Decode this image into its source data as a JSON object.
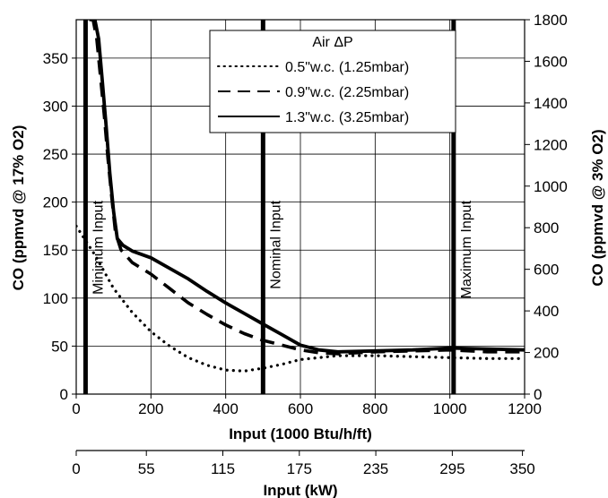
{
  "chart_data": {
    "type": "line",
    "xlabel": "Input (1000 Btu/h/ft)",
    "ylabel": "CO (ppmvd @ 17% O2)",
    "y2label": "CO (ppmvd @ 3% O2)",
    "x2label": "Input (kW)",
    "xlim": [
      0,
      1200
    ],
    "ylim": [
      0,
      390
    ],
    "y2lim": [
      0,
      1800
    ],
    "xticks": [
      0,
      200,
      400,
      600,
      800,
      1000,
      1200
    ],
    "yticks": [
      0,
      50,
      100,
      150,
      200,
      250,
      300,
      350
    ],
    "y2ticks": [
      0,
      200,
      400,
      600,
      800,
      1000,
      1200,
      1400,
      1600,
      1800
    ],
    "x2ticks": [
      {
        "label": "0",
        "btu": 0
      },
      {
        "label": "55",
        "btu": 187.7
      },
      {
        "label": "115",
        "btu": 392.4
      },
      {
        "label": "175",
        "btu": 597.1
      },
      {
        "label": "235",
        "btu": 801.8
      },
      {
        "label": "295",
        "btu": 1006.5
      },
      {
        "label": "350",
        "btu": 1194.2
      }
    ],
    "grid": true,
    "legend": {
      "title": "Air ΔP",
      "placement": "top-center",
      "entries": [
        "0.5\"w.c. (1.25mbar)",
        "0.9\"w.c. (2.25mbar)",
        "1.3\"w.c. (3.25mbar)"
      ]
    },
    "reference_lines": [
      {
        "x": 25,
        "label": "Minimum Input"
      },
      {
        "x": 500,
        "label": "Nominal Input"
      },
      {
        "x": 1010,
        "label": "Maximum Input"
      }
    ],
    "series": [
      {
        "name": "0.5\"w.c. (1.25mbar)",
        "style": "dotted",
        "x": [
          0,
          50,
          100,
          150,
          200,
          250,
          300,
          350,
          400,
          450,
          500,
          550,
          600,
          650,
          700,
          800,
          900,
          1000,
          1100,
          1200
        ],
        "y": [
          175,
          145,
          110,
          85,
          65,
          50,
          38,
          30,
          25,
          24,
          27,
          31,
          36,
          38,
          40,
          40,
          39,
          38,
          37,
          37
        ]
      },
      {
        "name": "0.9\"w.c. (2.25mbar)",
        "style": "dashed",
        "x": [
          35,
          45,
          55,
          65,
          75,
          85,
          95,
          105,
          120,
          150,
          200,
          250,
          300,
          350,
          400,
          450,
          500,
          550,
          600,
          650,
          700,
          800,
          900,
          1000,
          1100,
          1200
        ],
        "y": [
          390,
          390,
          370,
          330,
          290,
          245,
          205,
          168,
          150,
          137,
          125,
          110,
          95,
          83,
          72,
          63,
          56,
          51,
          46,
          43,
          42,
          44,
          45,
          46,
          44,
          44
        ]
      },
      {
        "name": "1.3\"w.c. (3.25mbar)",
        "style": "solid",
        "x": [
          40,
          50,
          60,
          70,
          80,
          90,
          100,
          110,
          125,
          150,
          200,
          250,
          300,
          350,
          400,
          450,
          500,
          550,
          600,
          650,
          700,
          800,
          900,
          1000,
          1100,
          1200
        ],
        "y": [
          390,
          390,
          370,
          325,
          280,
          230,
          190,
          162,
          155,
          149,
          142,
          131,
          120,
          107,
          95,
          84,
          73,
          62,
          51,
          46,
          44,
          45,
          46,
          48,
          47,
          46
        ]
      }
    ]
  }
}
